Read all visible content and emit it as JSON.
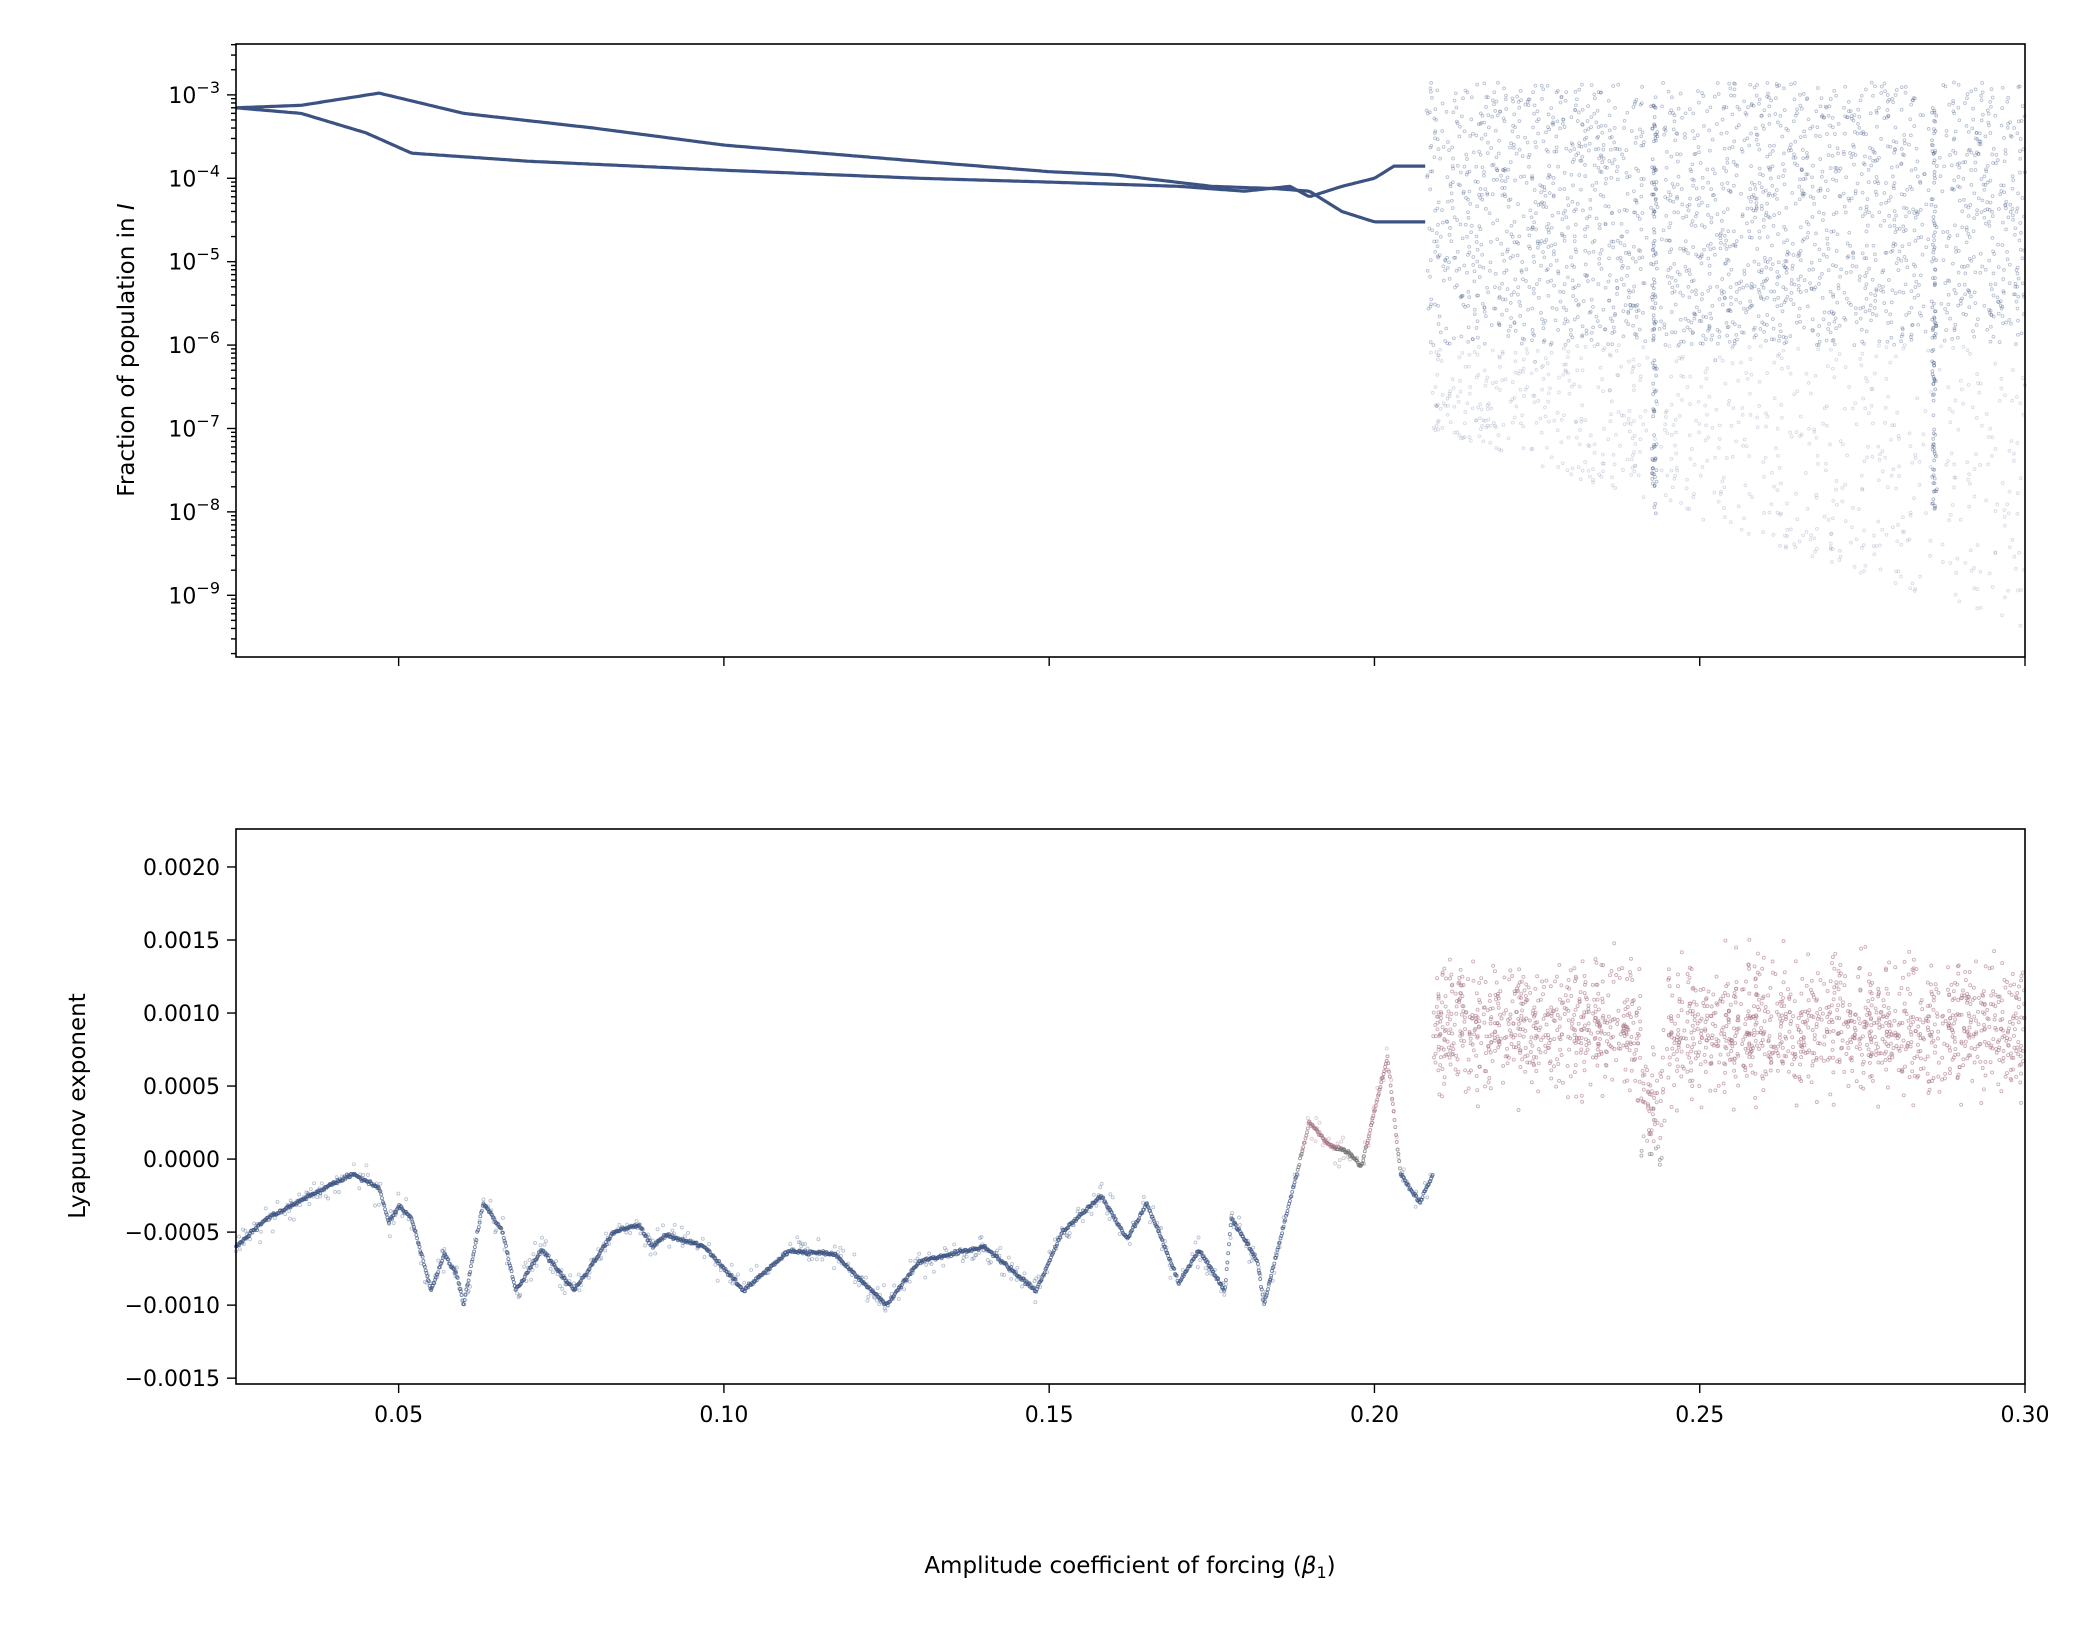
{
  "chart_data": [
    {
      "type": "scatter",
      "panel": "top",
      "ylabel": "Fraction of population in I",
      "ylabel_prefix": "Fraction of population in ",
      "ylabel_var": "I",
      "xlabel": "",
      "xlim": [
        0.025,
        0.3
      ],
      "ylim_log10": [
        -9.74,
        -2.39
      ],
      "yscale": "log",
      "xticks": [
        0.05,
        0.1,
        0.15,
        0.2,
        0.25,
        0.3
      ],
      "yticks_exponent": [
        -3,
        -4,
        -5,
        -6,
        -7,
        -8,
        -9
      ],
      "ytick_base": "10",
      "ytick_labels": [
        "−3",
        "−4",
        "−5",
        "−6",
        "−7",
        "−8",
        "−9"
      ],
      "color": "#3b5282",
      "branches": [
        {
          "name": "upper",
          "x": [
            0.025,
            0.035,
            0.047,
            0.06,
            0.08,
            0.1,
            0.13,
            0.15,
            0.16,
            0.175,
            0.185,
            0.19,
            0.195,
            0.2,
            0.208
          ],
          "y": [
            0.0007,
            0.00075,
            0.00105,
            0.0006,
            0.0004,
            0.00025,
            0.00016,
            0.00012,
            0.00011,
            8e-05,
            7.5e-05,
            7e-05,
            4e-05,
            3e-05,
            3e-05
          ]
        },
        {
          "name": "lower",
          "x": [
            0.025,
            0.035,
            0.045,
            0.052,
            0.07,
            0.1,
            0.13,
            0.15,
            0.17,
            0.18,
            0.187,
            0.19,
            0.195,
            0.2,
            0.203,
            0.208
          ],
          "y": [
            0.0007,
            0.0006,
            0.00035,
            0.0002,
            0.00016,
            0.000125,
            0.0001,
            9e-05,
            8e-05,
            7e-05,
            8e-05,
            6e-05,
            8e-05,
            0.0001,
            0.00014,
            0.00014
          ]
        }
      ],
      "chaotic_region": {
        "x_range": [
          0.208,
          0.3
        ],
        "dense_range": [
          1e-06,
          0.0015
        ],
        "sparse_min": 4e-10,
        "periodic_windows": [
          0.243,
          0.286
        ]
      }
    },
    {
      "type": "scatter",
      "panel": "bottom",
      "ylabel": "Lyapunov exponent",
      "xlabel": "Amplitude coefficient of forcing (β₁)",
      "xlabel_text": "Amplitude coefficient of forcing (",
      "xlabel_var": "β",
      "xlabel_sub": "1",
      "xlabel_end": ")",
      "xlim": [
        0.025,
        0.3
      ],
      "ylim": [
        -0.00154,
        0.00226
      ],
      "xticks": [
        0.05,
        0.1,
        0.15,
        0.2,
        0.25,
        0.3
      ],
      "xtick_labels": [
        "0.05",
        "0.10",
        "0.15",
        "0.20",
        "0.25",
        "0.30"
      ],
      "yticks": [
        0.002,
        0.0015,
        0.001,
        0.0005,
        0.0,
        -0.0005,
        -0.001,
        -0.0015
      ],
      "ytick_labels": [
        "0.0020",
        "0.0015",
        "0.0010",
        "0.0005",
        "0.0000",
        "−0.0005",
        "−0.0010",
        "−0.0015"
      ],
      "colors": {
        "negative": "#3b5282",
        "zero": "#6e6e6e",
        "positive": "#a5707f"
      },
      "curve": {
        "x": [
          0.025,
          0.03,
          0.043,
          0.047,
          0.0485,
          0.05,
          0.052,
          0.055,
          0.057,
          0.059,
          0.06,
          0.063,
          0.066,
          0.068,
          0.072,
          0.077,
          0.083,
          0.087,
          0.089,
          0.091,
          0.097,
          0.103,
          0.11,
          0.117,
          0.125,
          0.13,
          0.14,
          0.148,
          0.152,
          0.158,
          0.162,
          0.165,
          0.17,
          0.173,
          0.177,
          0.178,
          0.182,
          0.183,
          0.19,
          0.193,
          0.196,
          0.198,
          0.202,
          0.204,
          0.207,
          0.209
        ],
        "y": [
          -0.0006,
          -0.0004,
          -0.0001,
          -0.0002,
          -0.00043,
          -0.00032,
          -0.0004,
          -0.0009,
          -0.00065,
          -0.0008,
          -0.001,
          -0.0003,
          -0.0005,
          -0.0009,
          -0.00062,
          -0.0009,
          -0.0005,
          -0.00045,
          -0.0006,
          -0.00052,
          -0.0006,
          -0.0009,
          -0.00063,
          -0.00065,
          -0.001,
          -0.0007,
          -0.0006,
          -0.0009,
          -0.0005,
          -0.00025,
          -0.00055,
          -0.0003,
          -0.00085,
          -0.00062,
          -0.0009,
          -0.0004,
          -0.0007,
          -0.001,
          0.00025,
          0.0001,
          5e-05,
          -5e-05,
          0.0007,
          -0.0001,
          -0.0003,
          -0.0001
        ]
      },
      "chaotic_region": {
        "x_range": [
          0.209,
          0.3
        ],
        "mean": 0.0009,
        "spread": 0.0004,
        "window_dip": {
          "x": 0.243,
          "y": 0.0004
        }
      }
    }
  ]
}
